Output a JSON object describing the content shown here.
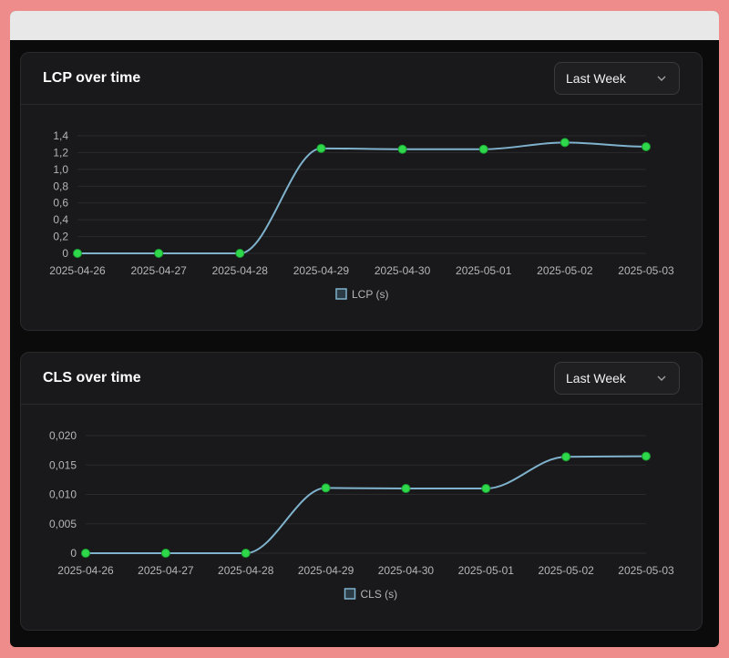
{
  "charts": [
    {
      "title": "LCP over time",
      "range_label": "Last Week",
      "icon": "chevron-down-icon"
    },
    {
      "title": "CLS over time",
      "range_label": "Last Week",
      "icon": "chevron-down-icon"
    }
  ],
  "colors": {
    "line": "#7fb2cc",
    "point_fill": "#2ed84a",
    "grid": "#2b2b2e",
    "tick_text": "#b6b6b6"
  },
  "chart_data": [
    {
      "type": "line",
      "title": "LCP over time",
      "x": [
        "2025-04-26",
        "2025-04-27",
        "2025-04-28",
        "2025-04-29",
        "2025-04-30",
        "2025-05-01",
        "2025-05-02",
        "2025-05-03"
      ],
      "series": [
        {
          "name": "LCP (s)",
          "values": [
            0,
            0,
            0,
            1.25,
            1.24,
            1.24,
            1.32,
            1.27
          ]
        }
      ],
      "yticks": [
        "0",
        "0,2",
        "0,4",
        "0,6",
        "0,8",
        "1,0",
        "1,2",
        "1,4"
      ],
      "ytick_values": [
        0,
        0.2,
        0.4,
        0.6,
        0.8,
        1.0,
        1.2,
        1.4
      ],
      "ylim": [
        0,
        1.4
      ],
      "grid": true,
      "legend": "bottom-center"
    },
    {
      "type": "line",
      "title": "CLS over time",
      "x": [
        "2025-04-26",
        "2025-04-27",
        "2025-04-28",
        "2025-04-29",
        "2025-04-30",
        "2025-05-01",
        "2025-05-02",
        "2025-05-03"
      ],
      "series": [
        {
          "name": "CLS (s)",
          "values": [
            0,
            0,
            0,
            0.0111,
            0.011,
            0.011,
            0.0164,
            0.0165
          ]
        }
      ],
      "yticks": [
        "0",
        "0,005",
        "0,010",
        "0,015",
        "0,020"
      ],
      "ytick_values": [
        0,
        0.005,
        0.01,
        0.015,
        0.02
      ],
      "ylim": [
        0,
        0.02
      ],
      "grid": true,
      "legend": "bottom-center"
    }
  ]
}
